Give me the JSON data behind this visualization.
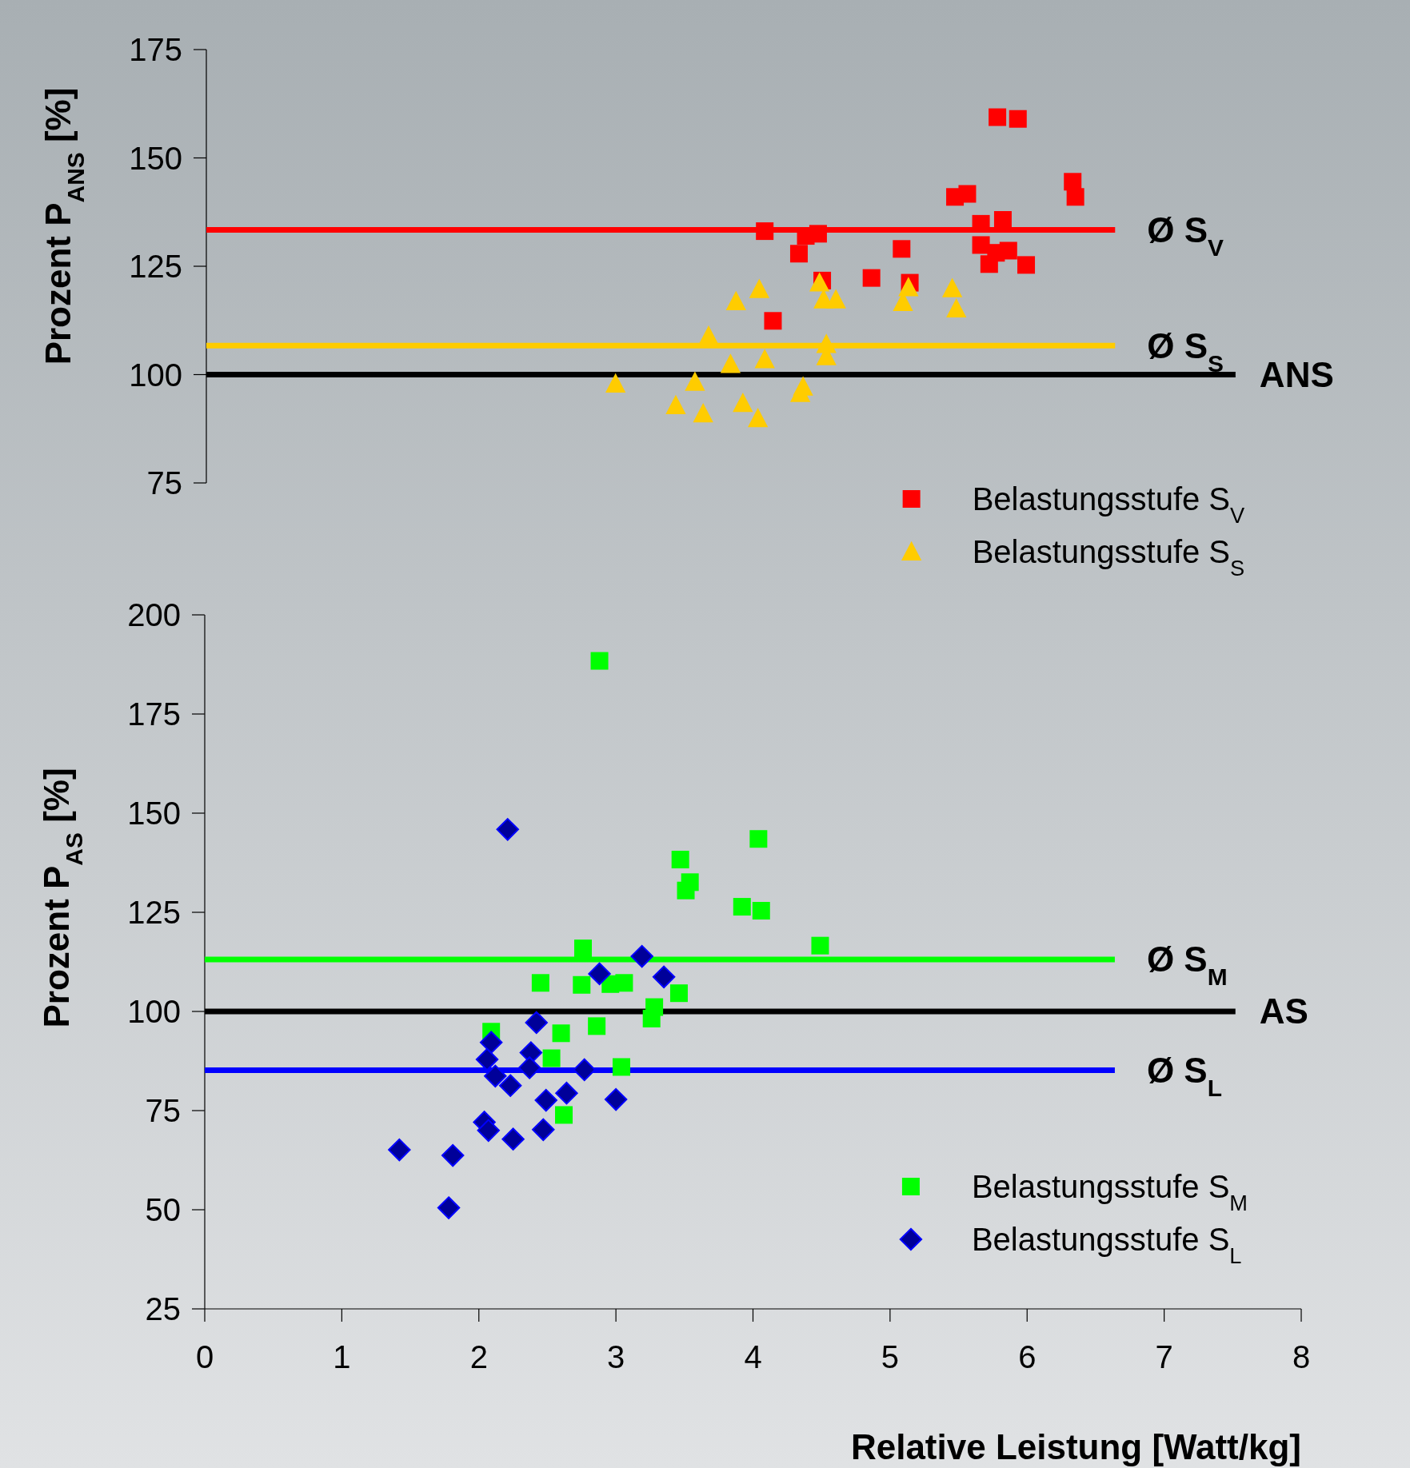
{
  "chart_data": [
    {
      "type": "scatter",
      "ylabel": "Prozent P$_{ANS}$ [%]",
      "xlim": [
        0,
        8
      ],
      "ylim": [
        75,
        175
      ],
      "yticks": [
        75,
        100,
        125,
        150,
        175
      ],
      "tick_labels": "y",
      "grid": false,
      "legend": "bottom",
      "series": [
        {
          "name": "Belastungsstufe S$_{V}$",
          "color": "#ff0000",
          "marker": "square",
          "x": [
            4.08,
            4.14,
            4.33,
            4.38,
            4.47,
            4.5,
            4.86,
            5.08,
            5.14,
            5.47,
            5.56,
            5.66,
            5.66,
            5.72,
            5.78,
            5.77,
            5.82,
            5.86,
            5.93,
            5.99,
            6.33,
            6.35
          ],
          "values": [
            133.1,
            112.4,
            127.9,
            132,
            132.5,
            121.7,
            122.3,
            129,
            121.2,
            141,
            141.7,
            134.8,
            129.9,
            125.5,
            159.4,
            128.1,
            135.7,
            128.6,
            159,
            125.3,
            144.5,
            141
          ]
        },
        {
          "name": "Belastungsstufe S$_{S}$",
          "color": "#ffcc00",
          "marker": "triangle",
          "x": [
            2.99,
            3.43,
            3.57,
            3.63,
            3.67,
            3.83,
            3.87,
            3.92,
            4.03,
            4.04,
            4.08,
            4.34,
            4.36,
            4.48,
            4.53,
            4.53,
            4.51,
            4.6,
            5.09,
            5.13,
            5.45,
            5.48
          ],
          "values": [
            97.9,
            92.9,
            98.3,
            91,
            108.9,
            102.4,
            116.9,
            93.4,
            89.9,
            119.7,
            103.5,
            95.7,
            97.2,
            121.2,
            107,
            104.2,
            117.3,
            117.3,
            116.7,
            120.1,
            119.9,
            115.2
          ]
        }
      ],
      "ref_lines": [
        {
          "axis": "y",
          "value": 100,
          "label": "ANS",
          "color": "#000000"
        },
        {
          "axis": "y",
          "value": 133.4,
          "label": "Ø S$_{V}$",
          "color": "#ff0000"
        },
        {
          "axis": "y",
          "value": 106.7,
          "label": "Ø S$_{S}$",
          "color": "#ffcc00"
        }
      ]
    },
    {
      "type": "scatter",
      "xlabel": "Relative Leistung [Watt/kg]",
      "ylabel": "Prozent P$_{AS}$ [%]",
      "xlim": [
        0,
        8
      ],
      "xticks": [
        0,
        1,
        2,
        3,
        4,
        5,
        6,
        7,
        8
      ],
      "ylim": [
        25,
        200
      ],
      "yticks": [
        25,
        50,
        75,
        100,
        125,
        150,
        175,
        200
      ],
      "grid": false,
      "legend": "bottom right",
      "series": [
        {
          "name": "Belastungsstufe S$_{M}$",
          "color": "#00ff00",
          "marker": "square",
          "x": [
            2.88,
            4.04,
            3.47,
            3.54,
            3.51,
            3.92,
            4.06,
            4.49,
            2.76,
            2.45,
            2.75,
            2.96,
            3.06,
            3.46,
            3.28,
            3.26,
            2.09,
            2.6,
            2.86,
            2.53,
            3.04,
            2.62
          ],
          "values": [
            188.4,
            143.5,
            138.3,
            132.6,
            130.5,
            126.4,
            125.4,
            116.6,
            115.9,
            107.2,
            106.7,
            106.9,
            107.2,
            104.6,
            101.1,
            98.2,
            94.9,
            94.5,
            96.3,
            88.2,
            86,
            73.9
          ]
        },
        {
          "name": "Belastungsstufe S$_{L}$",
          "color": "#000099",
          "marker": "diamond",
          "x": [
            2.21,
            2.88,
            3.19,
            3.35,
            2.42,
            2.09,
            2.06,
            2.38,
            2.37,
            2.12,
            2.23,
            2.77,
            2.64,
            2.49,
            3.0,
            2.04,
            2.07,
            2.25,
            2.47,
            1.42,
            1.81,
            1.78
          ],
          "values": [
            145.9,
            109.5,
            113.9,
            108.7,
            97.2,
            92.2,
            87.9,
            89.6,
            85.8,
            83.7,
            81.3,
            85.3,
            79.4,
            77.6,
            77.8,
            72.1,
            70,
            67.8,
            70.2,
            65.1,
            63.7,
            50.5
          ]
        }
      ],
      "ref_lines": [
        {
          "axis": "y",
          "value": 100,
          "label": "AS",
          "color": "#000000"
        },
        {
          "axis": "y",
          "value": 113.1,
          "label": "Ø S$_{M}$",
          "color": "#00ff00"
        },
        {
          "axis": "y",
          "value": 85.2,
          "label": "Ø S$_{L}$",
          "color": "#0000ff"
        }
      ]
    }
  ]
}
